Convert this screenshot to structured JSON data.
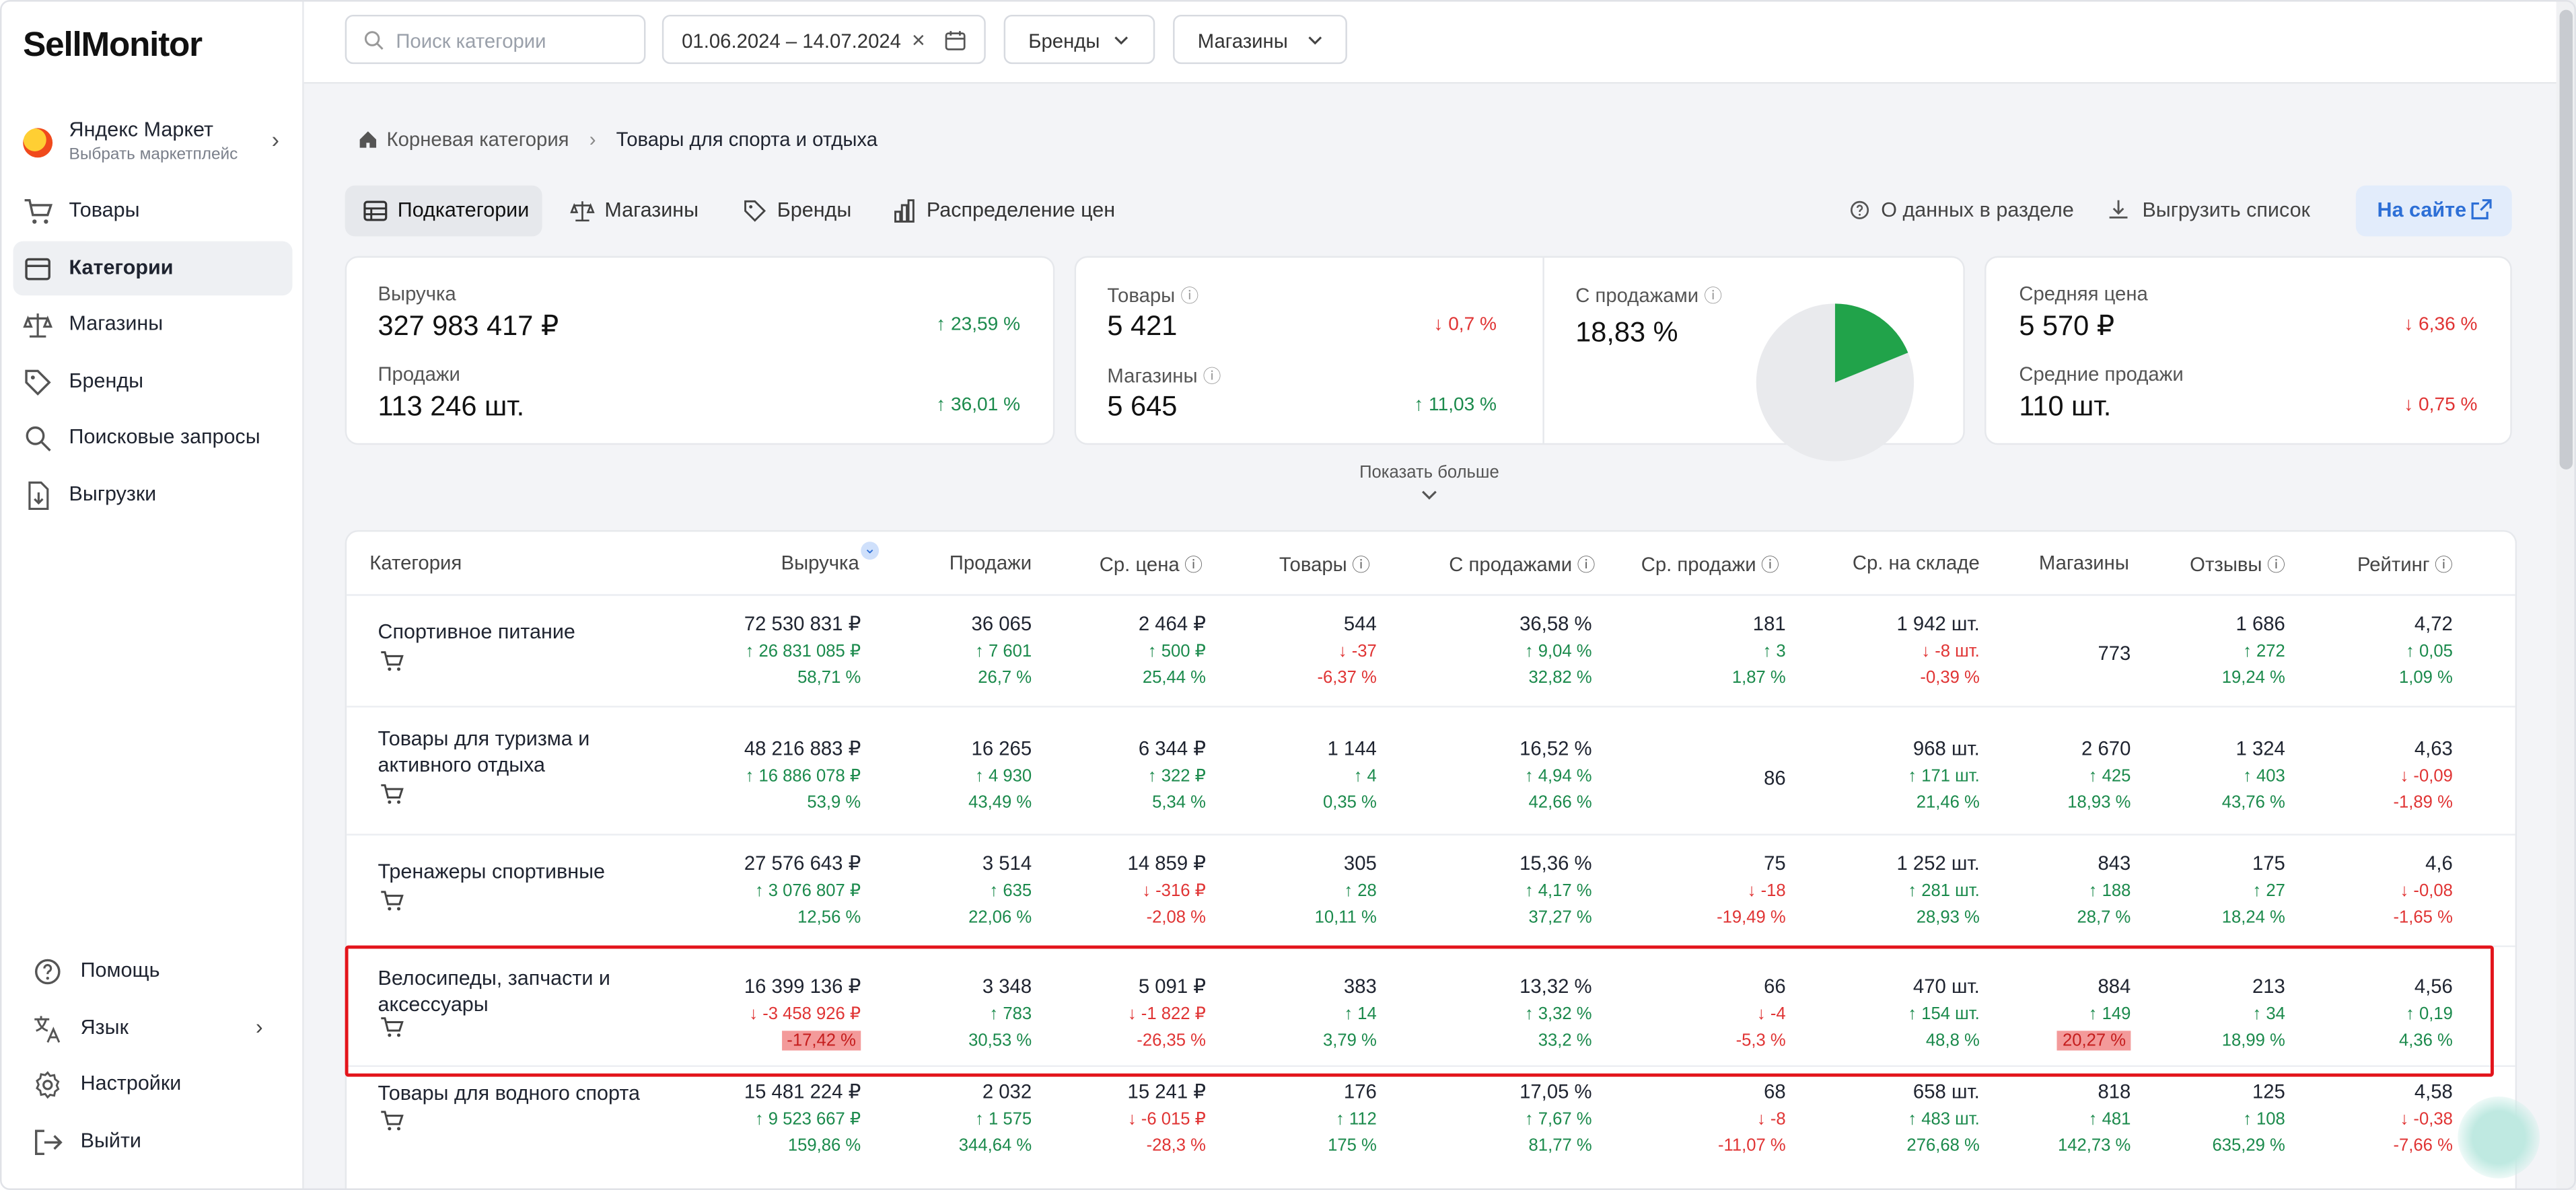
{
  "app": {
    "logo": "SellMonitor"
  },
  "sidebar": {
    "market": {
      "name": "Яндекс Маркет",
      "sub": "Выбрать маркетплейс"
    },
    "items": [
      {
        "label": "Товары",
        "icon": "cart-icon"
      },
      {
        "label": "Категории",
        "icon": "categories-icon"
      },
      {
        "label": "Магазины",
        "icon": "scales-icon"
      },
      {
        "label": "Бренды",
        "icon": "tag-icon"
      },
      {
        "label": "Поисковые запросы",
        "icon": "search-icon"
      },
      {
        "label": "Выгрузки",
        "icon": "download-file-icon"
      }
    ],
    "bottom": [
      {
        "label": "Помощь",
        "icon": "help-icon"
      },
      {
        "label": "Язык",
        "icon": "language-icon"
      },
      {
        "label": "Настройки",
        "icon": "gear-icon"
      },
      {
        "label": "Выйти",
        "icon": "logout-icon"
      }
    ]
  },
  "topbar": {
    "search_placeholder": "Поиск категории",
    "date_range": "01.06.2024 – 14.07.2024",
    "brands": "Бренды",
    "shops": "Магазины"
  },
  "breadcrumb": {
    "root": "Корневая категория",
    "current": "Товары для спорта и отдыха"
  },
  "tabs": [
    {
      "label": "Подкатегории",
      "icon": "table-icon"
    },
    {
      "label": "Магазины",
      "icon": "scales-icon"
    },
    {
      "label": "Бренды",
      "icon": "tag-icon"
    },
    {
      "label": "Распределение цен",
      "icon": "bar-chart-icon"
    }
  ],
  "actions": {
    "about": "О данных в разделе",
    "export": "Выгрузить список",
    "onsite": "На сайте"
  },
  "metrics": {
    "revenue": {
      "label": "Выручка",
      "value": "327 983 417 ₽",
      "delta": "23,59 %"
    },
    "sales": {
      "label": "Продажи",
      "value": "113 246 шт.",
      "delta": "36,01 %"
    },
    "products": {
      "label": "Товары",
      "value": "5 421",
      "delta": "0,7 %"
    },
    "shops": {
      "label": "Магазины",
      "value": "5 645",
      "delta": "11,03 %"
    },
    "with_sales": {
      "label": "С продажами",
      "value": "18,83 %",
      "share": 0.1883
    },
    "avg_price": {
      "label": "Средняя цена",
      "value": "5 570 ₽",
      "delta": "6,36 %"
    },
    "avg_sales": {
      "label": "Средние продажи",
      "value": "110 шт.",
      "delta": "0,75 %"
    }
  },
  "show_more": "Показать больше",
  "table": {
    "columns": [
      "Категория",
      "Выручка",
      "Продажи",
      "Ср. цена",
      "Товары",
      "С продажами",
      "Ср. продажи",
      "Ср. на складе",
      "Магазины",
      "Отзывы",
      "Рейтинг"
    ],
    "rows": [
      {
        "name": "Спортивное питание",
        "cells": [
          [
            "72 530 831 ₽",
            "26 831 085 ₽",
            "58,71 %",
            "up"
          ],
          [
            "36 065",
            "7 601",
            "26,7 %",
            "up"
          ],
          [
            "2 464 ₽",
            "500 ₽",
            "25,44 %",
            "up"
          ],
          [
            "544",
            "-37",
            "-6,37 %",
            "down"
          ],
          [
            "36,58 %",
            "9,04 %",
            "32,82 %",
            "up"
          ],
          [
            "181",
            "3",
            "1,87 %",
            "up"
          ],
          [
            "1 942 шт.",
            "-8 шт.",
            "-0,39 %",
            "down"
          ],
          [
            "773",
            "",
            "",
            "none"
          ],
          [
            "1 686",
            "272",
            "19,24 %",
            "up"
          ],
          [
            "4,72",
            "0,05",
            "1,09 %",
            "up"
          ]
        ]
      },
      {
        "name": "Товары для туризма и активного отдыха",
        "cells": [
          [
            "48 216 883 ₽",
            "16 886 078 ₽",
            "53,9 %",
            "up"
          ],
          [
            "16 265",
            "4 930",
            "43,49 %",
            "up"
          ],
          [
            "6 344 ₽",
            "322 ₽",
            "5,34 %",
            "up"
          ],
          [
            "1 144",
            "4",
            "0,35 %",
            "up"
          ],
          [
            "16,52 %",
            "4,94 %",
            "42,66 %",
            "up"
          ],
          [
            "86",
            "",
            "",
            "none"
          ],
          [
            "968 шт.",
            "171 шт.",
            "21,46 %",
            "up"
          ],
          [
            "2 670",
            "425",
            "18,93 %",
            "up"
          ],
          [
            "1 324",
            "403",
            "43,76 %",
            "up"
          ],
          [
            "4,63",
            "-0,09",
            "-1,89 %",
            "down"
          ]
        ]
      },
      {
        "name": "Тренажеры спортивные",
        "cells": [
          [
            "27 576 643 ₽",
            "3 076 807 ₽",
            "12,56 %",
            "up"
          ],
          [
            "3 514",
            "635",
            "22,06 %",
            "up"
          ],
          [
            "14 859 ₽",
            "-316 ₽",
            "-2,08 %",
            "down"
          ],
          [
            "305",
            "28",
            "10,11 %",
            "up"
          ],
          [
            "15,36 %",
            "4,17 %",
            "37,27 %",
            "up"
          ],
          [
            "75",
            "-18",
            "-19,49 %",
            "down"
          ],
          [
            "1 252 шт.",
            "281 шт.",
            "28,93 %",
            "up"
          ],
          [
            "843",
            "188",
            "28,7 %",
            "up"
          ],
          [
            "175",
            "27",
            "18,24 %",
            "up"
          ],
          [
            "4,6",
            "-0,08",
            "-1,65 %",
            "down"
          ]
        ]
      },
      {
        "name": "Велосипеды, запчасти и аксессуары",
        "cells": [
          [
            "16 399 136 ₽",
            "-3 458 926 ₽",
            "-17,42 %",
            "down"
          ],
          [
            "3 348",
            "783",
            "30,53 %",
            "up"
          ],
          [
            "5 091 ₽",
            "-1 822 ₽",
            "-26,35 %",
            "down"
          ],
          [
            "383",
            "14",
            "3,79 %",
            "up"
          ],
          [
            "13,32 %",
            "3,32 %",
            "33,2 %",
            "up"
          ],
          [
            "66",
            "-4",
            "-5,3 %",
            "down"
          ],
          [
            "470 шт.",
            "154 шт.",
            "48,8 %",
            "up"
          ],
          [
            "884",
            "149",
            "20,27 %",
            "up"
          ],
          [
            "213",
            "34",
            "18,99 %",
            "up"
          ],
          [
            "4,56",
            "0,19",
            "4,36 %",
            "up"
          ]
        ]
      },
      {
        "name": "Товары для водного спорта",
        "cells": [
          [
            "15 481 224 ₽",
            "9 523 667 ₽",
            "159,86 %",
            "up"
          ],
          [
            "2 032",
            "1 575",
            "344,64 %",
            "up"
          ],
          [
            "15 241 ₽",
            "-6 015 ₽",
            "-28,3 %",
            "down"
          ],
          [
            "176",
            "112",
            "175 %",
            "up"
          ],
          [
            "17,05 %",
            "7,67 %",
            "81,77 %",
            "up"
          ],
          [
            "68",
            "-8",
            "-11,07 %",
            "down"
          ],
          [
            "658 шт.",
            "483 шт.",
            "276,68 %",
            "up"
          ],
          [
            "818",
            "481",
            "142,73 %",
            "up"
          ],
          [
            "125",
            "108",
            "635,29 %",
            "up"
          ],
          [
            "4,58",
            "-0,38",
            "-7,66 %",
            "down"
          ]
        ]
      }
    ]
  },
  "colors": {
    "up": "#1b8a4c",
    "down": "#e03434",
    "accent": "#2d6fd6",
    "pie": "#21a34a",
    "highlight_box": "#e3141b"
  }
}
